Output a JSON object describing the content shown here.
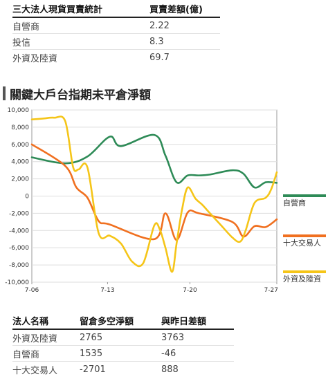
{
  "summary_table": {
    "headers": [
      "三大法人現貨買賣統計",
      "買賣差額(億)"
    ],
    "rows": [
      {
        "name": "自營商",
        "value": "2.22"
      },
      {
        "name": "投信",
        "value": "8.3"
      },
      {
        "name": "外資及陸資",
        "value": "69.7"
      }
    ]
  },
  "section_title": "關鍵大戶台指期未平倉淨額",
  "chart_data": {
    "type": "line",
    "title": "",
    "xlabel": "",
    "ylabel": "",
    "x_tick_labels": [
      "7-06",
      "7-13",
      "7-20",
      "7-27"
    ],
    "ylim": [
      -10000,
      10000
    ],
    "yticks": [
      -10000,
      -8000,
      -6000,
      -4000,
      -2000,
      0,
      2000,
      4000,
      6000,
      8000,
      10000
    ],
    "grid": true,
    "legend_position": "right",
    "series": [
      {
        "name": "自營商",
        "color": "#2e8b57",
        "points": [
          [
            0,
            4500
          ],
          [
            3,
            3800
          ],
          [
            5,
            4600
          ],
          [
            7,
            6900
          ],
          [
            8,
            5800
          ],
          [
            11,
            7100
          ],
          [
            12,
            4700
          ],
          [
            13,
            1600
          ],
          [
            14,
            2400
          ],
          [
            15,
            2400
          ],
          [
            16,
            2500
          ],
          [
            18,
            3000
          ],
          [
            19,
            2600
          ],
          [
            20,
            1000
          ],
          [
            21,
            1600
          ],
          [
            22,
            1535
          ]
        ]
      },
      {
        "name": "十大交易人",
        "color": "#f07020",
        "points": [
          [
            0,
            6000
          ],
          [
            3,
            3500
          ],
          [
            4,
            1000
          ],
          [
            5,
            -200
          ],
          [
            6,
            -2900
          ],
          [
            7,
            -3300
          ],
          [
            11,
            -5000
          ],
          [
            12,
            -2000
          ],
          [
            13,
            -5100
          ],
          [
            14,
            -1900
          ],
          [
            15,
            -2000
          ],
          [
            18,
            -3000
          ],
          [
            19,
            -4700
          ],
          [
            20,
            -3500
          ],
          [
            21,
            -3600
          ],
          [
            22,
            -2701
          ]
        ]
      },
      {
        "name": "外資及陸資",
        "color": "#f5c518",
        "points": [
          [
            0,
            8900
          ],
          [
            1,
            9000
          ],
          [
            2,
            9100
          ],
          [
            3,
            8700
          ],
          [
            3.7,
            3400
          ],
          [
            4.2,
            3100
          ],
          [
            5,
            3300
          ],
          [
            6,
            -4300
          ],
          [
            7,
            -4600
          ],
          [
            8,
            -5500
          ],
          [
            9,
            -7600
          ],
          [
            10,
            -7800
          ],
          [
            11,
            -3400
          ],
          [
            11.5,
            -3900
          ],
          [
            12,
            -6000
          ],
          [
            12.6,
            -8800
          ],
          [
            13,
            -5500
          ],
          [
            13.5,
            -1500
          ],
          [
            14,
            1000
          ],
          [
            14.7,
            -300
          ],
          [
            15.3,
            -1000
          ],
          [
            16,
            -2000
          ],
          [
            17,
            -3400
          ],
          [
            18,
            -4800
          ],
          [
            18.7,
            -5300
          ],
          [
            19.2,
            -4000
          ],
          [
            20,
            -800
          ],
          [
            21,
            -200
          ],
          [
            21.5,
            800
          ],
          [
            22,
            2765
          ]
        ]
      }
    ]
  },
  "detail_table": {
    "headers": [
      "法人名稱",
      "留倉多空淨額",
      "與昨日差額"
    ],
    "rows": [
      {
        "name": "外資及陸資",
        "net": "2765",
        "diff": "3763"
      },
      {
        "name": "自營商",
        "net": "1535",
        "diff": "-46"
      },
      {
        "name": "十大交易人",
        "net": "-2701",
        "diff": "888"
      }
    ]
  }
}
